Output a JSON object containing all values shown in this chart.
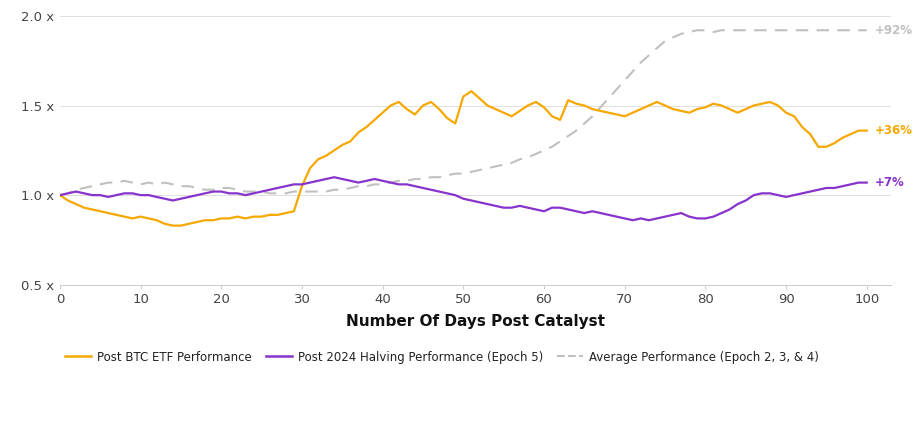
{
  "title": "",
  "xlabel": "Number Of Days Post Catalyst",
  "ylabel": "",
  "xlim": [
    0,
    103
  ],
  "ylim": [
    0.5,
    2.05
  ],
  "yticks": [
    0.5,
    1.0,
    1.5,
    2.0
  ],
  "ytick_labels": [
    "0.5 x",
    "1.0 x",
    "1.5 x",
    "2.0 x"
  ],
  "xticks": [
    0,
    10,
    20,
    30,
    40,
    50,
    60,
    70,
    80,
    90,
    100
  ],
  "background_color": "#ffffff",
  "label_etf": "Post BTC ETF Performance",
  "label_halving": "Post 2024 Halving Performance (Epoch 5)",
  "label_avg": "Average Performance (Epoch 2, 3, & 4)",
  "color_etf": "#f5a800",
  "color_halving": "#8833cc",
  "color_avg": "#c0c0c0",
  "annotation_etf": "+36%",
  "annotation_halving": "+7%",
  "annotation_avg": "+92%",
  "etf_y": [
    1.0,
    0.97,
    0.95,
    0.93,
    0.92,
    0.91,
    0.9,
    0.89,
    0.88,
    0.87,
    0.88,
    0.87,
    0.86,
    0.84,
    0.83,
    0.83,
    0.84,
    0.85,
    0.86,
    0.86,
    0.87,
    0.87,
    0.88,
    0.87,
    0.88,
    0.88,
    0.89,
    0.89,
    0.9,
    0.91,
    1.05,
    1.15,
    1.2,
    1.22,
    1.25,
    1.28,
    1.3,
    1.35,
    1.38,
    1.42,
    1.46,
    1.5,
    1.52,
    1.48,
    1.45,
    1.5,
    1.52,
    1.48,
    1.43,
    1.4,
    1.55,
    1.58,
    1.54,
    1.5,
    1.48,
    1.46,
    1.44,
    1.47,
    1.5,
    1.52,
    1.49,
    1.44,
    1.42,
    1.53,
    1.51,
    1.5,
    1.48,
    1.47,
    1.46,
    1.45,
    1.44,
    1.46,
    1.48,
    1.5,
    1.52,
    1.5,
    1.48,
    1.47,
    1.46,
    1.48,
    1.49,
    1.51,
    1.5,
    1.48,
    1.46,
    1.48,
    1.5,
    1.51,
    1.52,
    1.5,
    1.46,
    1.44,
    1.38,
    1.34,
    1.27,
    1.27,
    1.29,
    1.32,
    1.34,
    1.36,
    1.36
  ],
  "halving_y": [
    1.0,
    1.01,
    1.02,
    1.01,
    1.0,
    1.0,
    0.99,
    1.0,
    1.01,
    1.01,
    1.0,
    1.0,
    0.99,
    0.98,
    0.97,
    0.98,
    0.99,
    1.0,
    1.01,
    1.02,
    1.02,
    1.01,
    1.01,
    1.0,
    1.01,
    1.02,
    1.03,
    1.04,
    1.05,
    1.06,
    1.06,
    1.07,
    1.08,
    1.09,
    1.1,
    1.09,
    1.08,
    1.07,
    1.08,
    1.09,
    1.08,
    1.07,
    1.06,
    1.06,
    1.05,
    1.04,
    1.03,
    1.02,
    1.01,
    1.0,
    0.98,
    0.97,
    0.96,
    0.95,
    0.94,
    0.93,
    0.93,
    0.94,
    0.93,
    0.92,
    0.91,
    0.93,
    0.93,
    0.92,
    0.91,
    0.9,
    0.91,
    0.9,
    0.89,
    0.88,
    0.87,
    0.86,
    0.87,
    0.86,
    0.87,
    0.88,
    0.89,
    0.9,
    0.88,
    0.87,
    0.87,
    0.88,
    0.9,
    0.92,
    0.95,
    0.97,
    1.0,
    1.01,
    1.01,
    1.0,
    0.99,
    1.0,
    1.01,
    1.02,
    1.03,
    1.04,
    1.04,
    1.05,
    1.06,
    1.07,
    1.07
  ],
  "avg_y": [
    1.0,
    1.01,
    1.03,
    1.04,
    1.05,
    1.06,
    1.07,
    1.07,
    1.08,
    1.07,
    1.06,
    1.07,
    1.06,
    1.07,
    1.06,
    1.05,
    1.05,
    1.04,
    1.03,
    1.03,
    1.04,
    1.04,
    1.03,
    1.02,
    1.02,
    1.02,
    1.01,
    1.01,
    1.01,
    1.02,
    1.02,
    1.02,
    1.02,
    1.02,
    1.03,
    1.03,
    1.04,
    1.05,
    1.05,
    1.06,
    1.06,
    1.07,
    1.08,
    1.08,
    1.09,
    1.09,
    1.1,
    1.1,
    1.11,
    1.12,
    1.12,
    1.13,
    1.14,
    1.15,
    1.16,
    1.17,
    1.18,
    1.2,
    1.21,
    1.23,
    1.25,
    1.27,
    1.3,
    1.33,
    1.36,
    1.4,
    1.44,
    1.49,
    1.54,
    1.59,
    1.64,
    1.69,
    1.74,
    1.78,
    1.82,
    1.86,
    1.88,
    1.9,
    1.91,
    1.92,
    1.92,
    1.91,
    1.92,
    1.92,
    1.92,
    1.92,
    1.92,
    1.92,
    1.92,
    1.92,
    1.92,
    1.92,
    1.92,
    1.92,
    1.92,
    1.92,
    1.92,
    1.92,
    1.92,
    1.92,
    1.92
  ]
}
